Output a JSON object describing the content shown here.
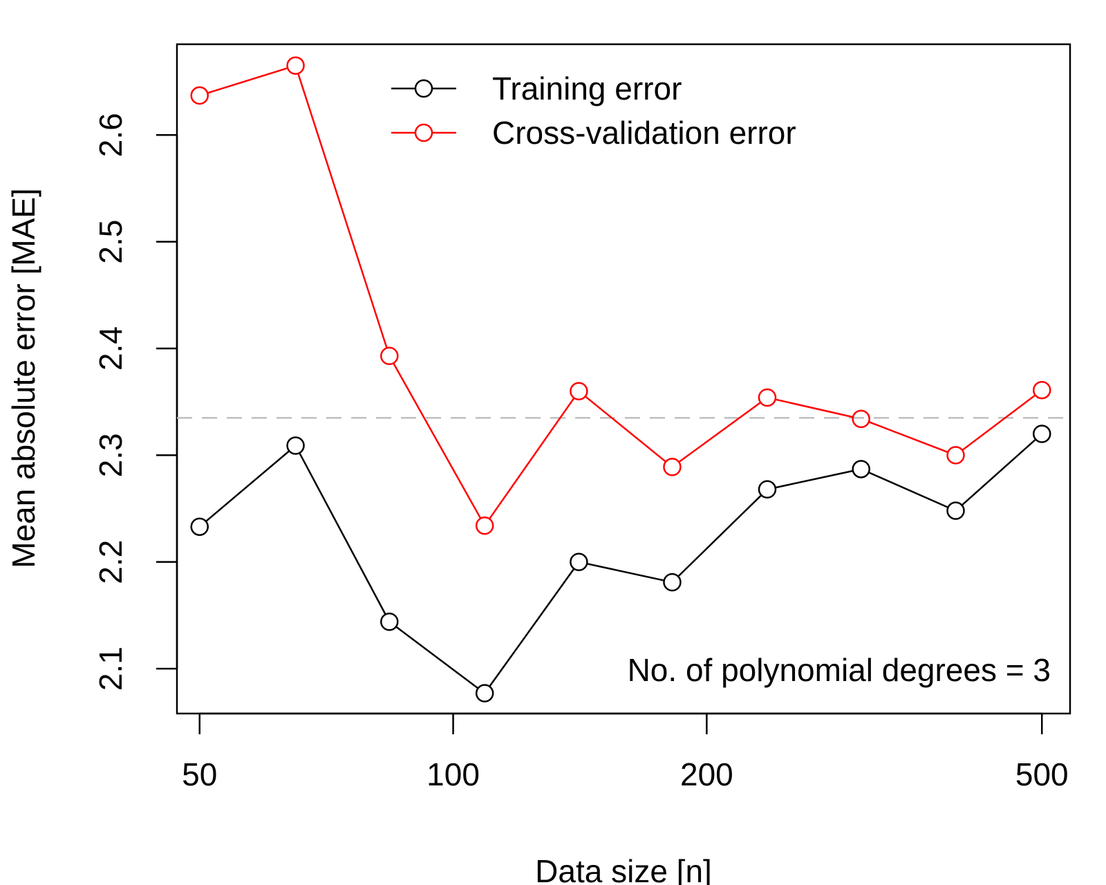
{
  "chart_data": {
    "type": "line",
    "xlabel": "Data size [n]",
    "ylabel": "Mean absolute error [MAE]",
    "x_scale": "log",
    "xlim": [
      47,
      540
    ],
    "ylim": [
      2.058,
      2.685
    ],
    "x_ticks": [
      50,
      100,
      200,
      500
    ],
    "x_tick_labels": [
      "50",
      "100",
      "200",
      "500"
    ],
    "y_ticks": [
      2.1,
      2.2,
      2.3,
      2.4,
      2.5,
      2.6
    ],
    "y_tick_labels": [
      "2.1",
      "2.2",
      "2.3",
      "2.4",
      "2.5",
      "2.6"
    ],
    "x": [
      50,
      65,
      84,
      109,
      141,
      182,
      236,
      305,
      395,
      500
    ],
    "series": [
      {
        "name": "Training error",
        "color": "#000000",
        "values": [
          2.233,
          2.309,
          2.144,
          2.077,
          2.2,
          2.181,
          2.268,
          2.287,
          2.248,
          2.32
        ]
      },
      {
        "name": "Cross-validation error",
        "color": "#ff0000",
        "values": [
          2.637,
          2.665,
          2.393,
          2.234,
          2.36,
          2.289,
          2.354,
          2.334,
          2.3,
          2.361
        ]
      }
    ],
    "reference_line": {
      "y": 2.335,
      "style": "dashed",
      "color": "#bebebe"
    },
    "legend": {
      "placement": "top-center"
    },
    "annotation": "No. of polynomial degrees = 3",
    "grid": false
  }
}
